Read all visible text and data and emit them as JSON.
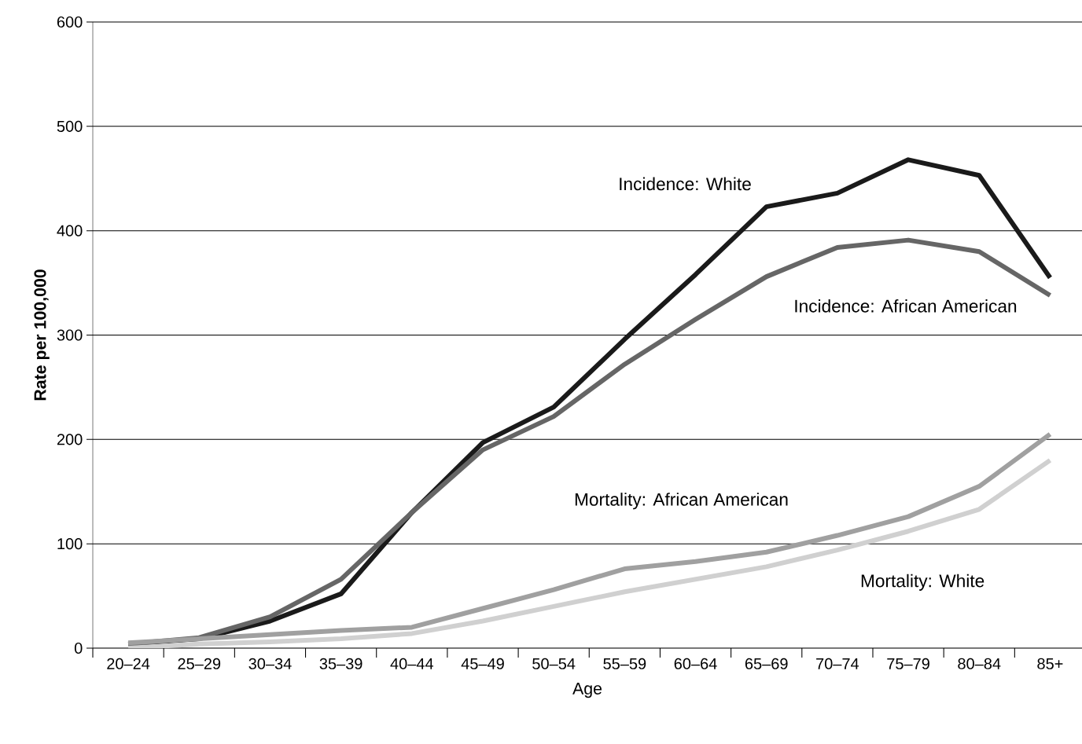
{
  "chart_data": {
    "type": "line",
    "xlabel": "Age",
    "ylabel": "Rate per 100,000",
    "categories": [
      "20–24",
      "25–29",
      "30–34",
      "35–39",
      "40–44",
      "45–49",
      "50–54",
      "55–59",
      "60–64",
      "65–69",
      "70–74",
      "75–79",
      "80–84",
      "85+"
    ],
    "series": [
      {
        "name": "Incidence: White",
        "color": "#1a1a1a",
        "values": [
          4,
          9,
          26,
          52,
          130,
          197,
          231,
          296,
          358,
          423,
          436,
          468,
          453,
          355
        ]
      },
      {
        "name": "Incidence: African American",
        "color": "#666666",
        "values": [
          4,
          10,
          30,
          66,
          130,
          190,
          222,
          272,
          315,
          356,
          384,
          391,
          380,
          338
        ]
      },
      {
        "name": "Mortality: African American",
        "color": "#a0a0a0",
        "values": [
          5,
          9,
          13,
          17,
          20,
          38,
          56,
          76,
          83,
          92,
          108,
          126,
          155,
          205
        ]
      },
      {
        "name": "Mortality: White",
        "color": "#d0d0d0",
        "values": [
          0,
          4,
          6,
          9,
          14,
          26,
          40,
          54,
          66,
          78,
          94,
          112,
          133,
          180
        ]
      }
    ],
    "ylim": [
      0,
      600
    ],
    "yticks": [
      0,
      100,
      200,
      300,
      400,
      500,
      600
    ],
    "grid": "y",
    "marker": "none",
    "line_style": "solid"
  }
}
